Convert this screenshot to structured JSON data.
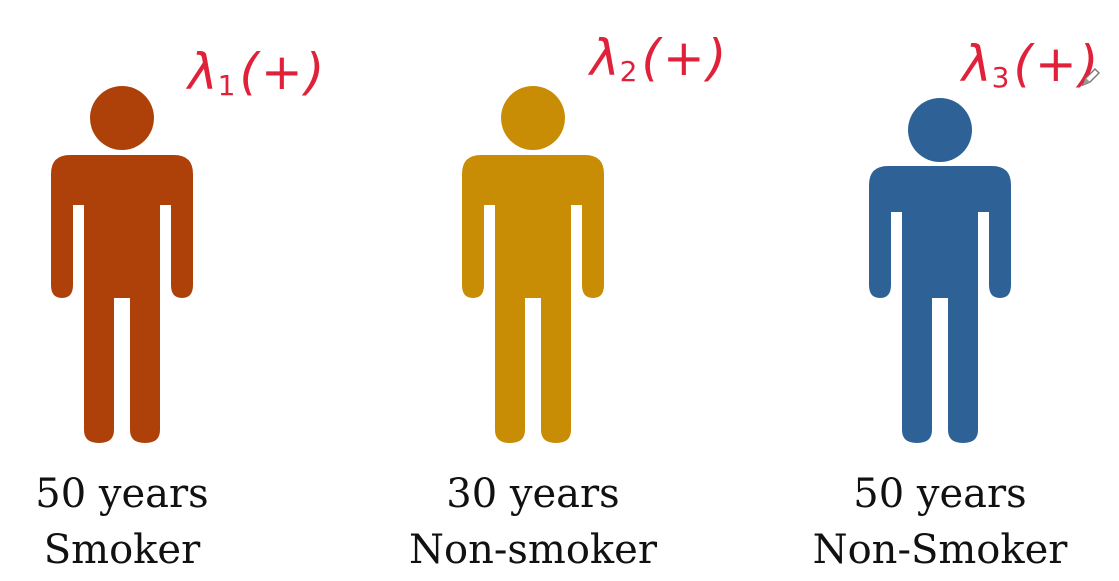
{
  "people": [
    {
      "color": "#ad4109",
      "age_label": "50 years",
      "status_label": "Smoker",
      "rate_symbol": "λ",
      "rate_index": "1",
      "rate_arg": "(+)"
    },
    {
      "color": "#c98c05",
      "age_label": "30 years",
      "status_label": "Non-smoker",
      "rate_symbol": "λ",
      "rate_index": "2",
      "rate_arg": "(+)"
    },
    {
      "color": "#2e6296",
      "age_label": "50 years",
      "status_label": "Non-Smoker",
      "rate_symbol": "λ",
      "rate_index": "3",
      "rate_arg": "(+)"
    }
  ],
  "annotation_color": "#e0213a",
  "icons": {
    "pen": "pen-icon"
  }
}
